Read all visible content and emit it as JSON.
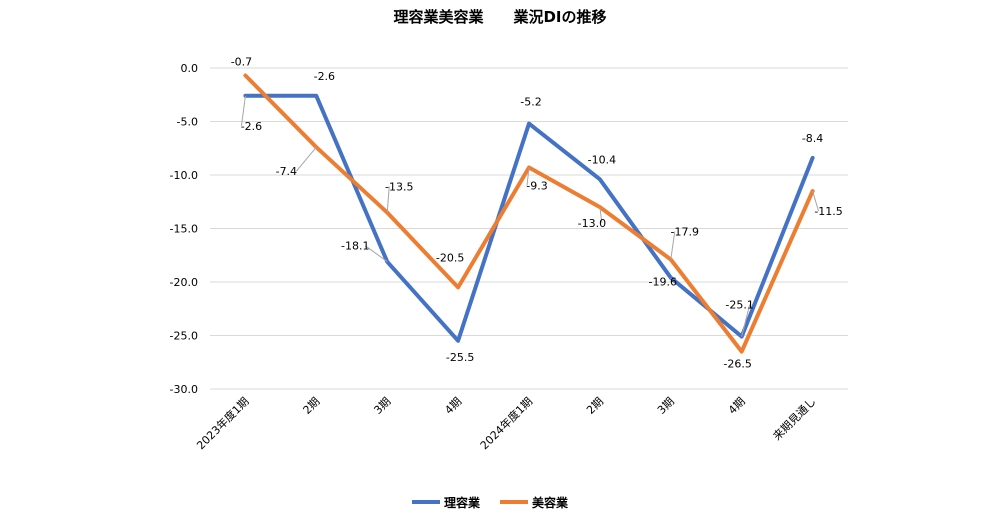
{
  "chart_data": {
    "type": "line",
    "title": "理容業美容業　　業況DIの推移",
    "categories": [
      "2023年度1期",
      "2期",
      "3期",
      "4期",
      "2024年度1期",
      "2期",
      "3期",
      "4期",
      "来期見通し"
    ],
    "series": [
      {
        "name": "理容業",
        "color": "#4472C4",
        "values": [
          -2.6,
          -2.6,
          -18.1,
          -25.5,
          -5.2,
          -10.4,
          -19.6,
          -25.1,
          -8.4
        ]
      },
      {
        "name": "美容業",
        "color": "#ED7D31",
        "values": [
          -0.7,
          -7.4,
          -13.5,
          -20.5,
          -9.3,
          -13.0,
          -17.9,
          -26.5,
          -11.5
        ]
      }
    ],
    "ylim": [
      -30.0,
      0.0
    ],
    "ytick_step": 5,
    "ytick_labels": [
      "0.0",
      "-5.0",
      "-10.0",
      "-15.0",
      "-20.0",
      "-25.0",
      "-30.0"
    ],
    "data_labels": {
      "理容業": [
        "-2.6",
        "-2.6",
        "-18.1",
        "-25.5",
        "-5.2",
        "-10.4",
        "-19.6",
        "-25.1",
        "-8.4"
      ],
      "美容業": [
        "-0.7",
        "-7.4",
        "-13.5",
        "-20.5",
        "-9.3",
        "-13.0",
        "-17.9",
        "-26.5",
        "-11.5"
      ]
    },
    "grid": true,
    "legend_position": "bottom"
  }
}
